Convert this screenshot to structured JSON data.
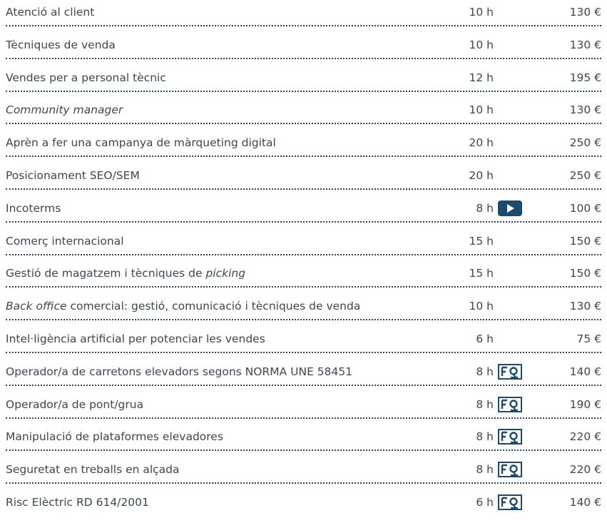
{
  "rows": [
    {
      "name": [
        {
          "text": "Atenció al client",
          "italic": false
        }
      ],
      "hours": "10 h",
      "price": "130 €"
    },
    {
      "name": [
        {
          "text": "Tècniques de venda",
          "italic": false
        }
      ],
      "hours": "10 h",
      "price": "130 €"
    },
    {
      "name": [
        {
          "text": "Vendes per a personal tècnic",
          "italic": false
        }
      ],
      "hours": "12 h",
      "price": "195 €"
    },
    {
      "name": [
        {
          "text": "Community manager",
          "italic": true
        }
      ],
      "hours": "10 h",
      "price": "130 €"
    },
    {
      "name": [
        {
          "text": "Aprèn a fer una campanya de màrqueting digital",
          "italic": false
        }
      ],
      "hours": "20 h",
      "price": "250 €"
    },
    {
      "name": [
        {
          "text": "Posicionament SEO/SEM",
          "italic": false
        }
      ],
      "hours": "20 h",
      "price": "250 €"
    },
    {
      "name": [
        {
          "text": "Incoterms",
          "italic": false
        }
      ],
      "hours": "8 h",
      "price": "100 €",
      "icon": "video"
    },
    {
      "name": [
        {
          "text": "Comerç internacional",
          "italic": false
        }
      ],
      "hours": "15 h",
      "price": "150 €"
    },
    {
      "name": [
        {
          "text": "Gestió de magatzem i tècniques de ",
          "italic": false
        },
        {
          "text": "picking",
          "italic": true
        }
      ],
      "hours": "15 h",
      "price": "150 €"
    },
    {
      "name": [
        {
          "text": "Back office",
          "italic": true
        },
        {
          "text": " comercial: gestió, comunicació i tècniques de venda",
          "italic": false
        }
      ],
      "hours": "10 h",
      "price": "130 €"
    },
    {
      "name": [
        {
          "text": "Intel·ligència artificial per potenciar les vendes",
          "italic": false
        }
      ],
      "hours": "6 h",
      "price": "75 €"
    },
    {
      "name": [
        {
          "text": "Operador/a de carretons elevadors segons NORMA UNE 58451",
          "italic": false
        }
      ],
      "hours": "8 h",
      "price": "140 €",
      "icon": "certificate"
    },
    {
      "name": [
        {
          "text": "Operador/a de pont/grua",
          "italic": false
        }
      ],
      "hours": "8 h",
      "price": "190 €",
      "icon": "certificate"
    },
    {
      "name": [
        {
          "text": "Manipulació de plataformes elevadores",
          "italic": false
        }
      ],
      "hours": "8 h",
      "price": "220 €",
      "icon": "certificate"
    },
    {
      "name": [
        {
          "text": "Seguretat en treballs en alçada",
          "italic": false
        }
      ],
      "hours": "8 h",
      "price": "220 €",
      "icon": "certificate"
    },
    {
      "name": [
        {
          "text": "Risc Elèctric RD 614/2001",
          "italic": false
        }
      ],
      "hours": "6 h",
      "price": "140 €",
      "icon": "certificate"
    }
  ]
}
